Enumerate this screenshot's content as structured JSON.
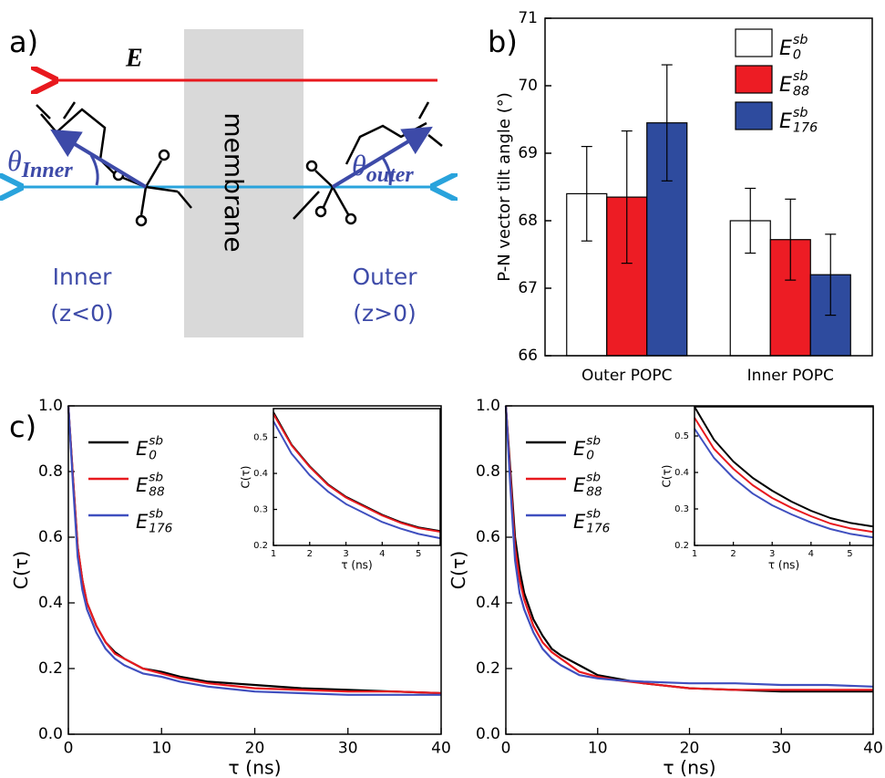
{
  "diagram": {
    "panel_label": "a)",
    "field_label": "E",
    "membrane_label": "membrane",
    "theta_inner": {
      "symbol": "θ",
      "subscript": "Inner"
    },
    "theta_outer": {
      "symbol": "θ",
      "subscript": "outer"
    },
    "inner_label": "Inner",
    "inner_condition": "(z<0)",
    "outer_label": "Outer",
    "outer_condition": "(z>0)"
  },
  "chart_data": [
    {
      "type": "bar",
      "panel_label": "b)",
      "y_label": "P-N vector tilt angle (°)",
      "categories": [
        "Outer POPC",
        "Inner POPC"
      ],
      "series": [
        {
          "name": "E",
          "name_sub": "0",
          "name_sup": "sb",
          "color": "#ffffff",
          "values": [
            68.4,
            68.0
          ],
          "errors": [
            0.7,
            0.48
          ]
        },
        {
          "name": "E",
          "name_sub": "88",
          "name_sup": "sb",
          "color": "#ed1c24",
          "values": [
            68.35,
            67.72
          ],
          "errors": [
            0.98,
            0.6
          ]
        },
        {
          "name": "E",
          "name_sub": "176",
          "name_sup": "sb",
          "color": "#2e4b9e",
          "values": [
            69.45,
            67.2
          ],
          "errors": [
            0.86,
            0.6
          ]
        }
      ],
      "ylim": [
        66,
        71
      ],
      "yticks": [
        66,
        67,
        68,
        69,
        70,
        71
      ],
      "legend": "upper right"
    },
    {
      "type": "line",
      "panel_label": "c)",
      "x_label": "τ (ns)",
      "y_label": "C(τ)",
      "x": [
        0,
        0.5,
        1,
        1.5,
        2,
        3,
        4,
        5,
        6,
        8,
        10,
        12,
        15,
        20,
        25,
        30,
        35,
        40
      ],
      "series": [
        {
          "name": "E",
          "name_sub": "0",
          "name_sup": "sb",
          "color": "#000000",
          "values": [
            1.0,
            0.78,
            0.57,
            0.47,
            0.4,
            0.33,
            0.28,
            0.25,
            0.23,
            0.2,
            0.19,
            0.175,
            0.16,
            0.15,
            0.14,
            0.135,
            0.13,
            0.125
          ]
        },
        {
          "name": "E",
          "name_sub": "88",
          "name_sup": "sb",
          "color": "#e8191e",
          "values": [
            1.0,
            0.78,
            0.57,
            0.47,
            0.4,
            0.33,
            0.28,
            0.245,
            0.23,
            0.2,
            0.185,
            0.17,
            0.155,
            0.14,
            0.135,
            0.13,
            0.13,
            0.125
          ]
        },
        {
          "name": "E",
          "name_sub": "176",
          "name_sup": "sb",
          "color": "#3f4fbf",
          "values": [
            1.0,
            0.76,
            0.54,
            0.44,
            0.38,
            0.31,
            0.26,
            0.23,
            0.21,
            0.185,
            0.175,
            0.16,
            0.145,
            0.13,
            0.125,
            0.12,
            0.12,
            0.12
          ]
        }
      ],
      "xlim": [
        0,
        40
      ],
      "xticks": [
        0,
        10,
        20,
        30,
        40
      ],
      "ylim": [
        0,
        1
      ],
      "yticks": [
        {
          "value": 0,
          "label": "0.0"
        },
        0.2,
        0.4,
        0.6,
        0.8,
        {
          "value": 1,
          "label": "1.0"
        }
      ],
      "legend": "upper left"
    },
    {
      "type": "line",
      "x_label": "τ (ns)",
      "y_label": "C(τ)",
      "x": [
        1,
        1.5,
        2,
        2.5,
        3,
        3.5,
        4,
        4.5,
        5,
        5.6
      ],
      "series": [
        {
          "color": "#000000",
          "values": [
            0.57,
            0.48,
            0.42,
            0.37,
            0.335,
            0.31,
            0.285,
            0.265,
            0.25,
            0.24
          ]
        },
        {
          "color": "#e8191e",
          "values": [
            0.565,
            0.478,
            0.418,
            0.368,
            0.333,
            0.308,
            0.283,
            0.263,
            0.248,
            0.238
          ]
        },
        {
          "color": "#3f4fbf",
          "values": [
            0.545,
            0.455,
            0.395,
            0.35,
            0.315,
            0.29,
            0.265,
            0.247,
            0.232,
            0.22
          ]
        }
      ],
      "xlim": [
        1,
        5.6
      ],
      "xticks": [
        1,
        2,
        3,
        4,
        5
      ],
      "ylim": [
        0.2,
        0.58
      ],
      "yticks": [
        0.2,
        0.3,
        0.4,
        0.5
      ]
    },
    {
      "type": "line",
      "x_label": "τ (ns)",
      "y_label": "C(τ)",
      "x": [
        0,
        0.5,
        1,
        1.5,
        2,
        3,
        4,
        5,
        6,
        8,
        10,
        12,
        15,
        20,
        25,
        30,
        35,
        40
      ],
      "series": [
        {
          "name": "E",
          "name_sub": "0",
          "name_sup": "sb",
          "color": "#000000",
          "values": [
            1.0,
            0.8,
            0.6,
            0.5,
            0.43,
            0.35,
            0.3,
            0.26,
            0.24,
            0.21,
            0.18,
            0.17,
            0.155,
            0.14,
            0.135,
            0.13,
            0.13,
            0.13
          ]
        },
        {
          "name": "E",
          "name_sub": "88",
          "name_sup": "sb",
          "color": "#e8191e",
          "values": [
            1.0,
            0.78,
            0.57,
            0.47,
            0.41,
            0.33,
            0.28,
            0.25,
            0.23,
            0.19,
            0.175,
            0.165,
            0.155,
            0.14,
            0.135,
            0.135,
            0.135,
            0.135
          ]
        },
        {
          "name": "E",
          "name_sub": "176",
          "name_sup": "sb",
          "color": "#3f4fbf",
          "values": [
            1.0,
            0.75,
            0.53,
            0.43,
            0.38,
            0.31,
            0.26,
            0.23,
            0.21,
            0.18,
            0.17,
            0.165,
            0.16,
            0.155,
            0.155,
            0.15,
            0.15,
            0.145
          ]
        }
      ],
      "xlim": [
        0,
        40
      ],
      "xticks": [
        0,
        10,
        20,
        30,
        40
      ],
      "ylim": [
        0,
        1
      ],
      "yticks": [
        {
          "value": 0,
          "label": "0.0"
        },
        0.2,
        0.4,
        0.6,
        0.8,
        {
          "value": 1,
          "label": "1.0"
        }
      ],
      "legend": "upper left"
    },
    {
      "type": "line",
      "x_label": "τ (ns)",
      "y_label": "C(τ)",
      "x": [
        1,
        1.5,
        2,
        2.5,
        3,
        3.5,
        4,
        4.5,
        5,
        5.6
      ],
      "series": [
        {
          "color": "#000000",
          "values": [
            0.58,
            0.49,
            0.43,
            0.385,
            0.35,
            0.32,
            0.295,
            0.275,
            0.262,
            0.252
          ]
        },
        {
          "color": "#e8191e",
          "values": [
            0.55,
            0.465,
            0.41,
            0.365,
            0.33,
            0.303,
            0.28,
            0.26,
            0.247,
            0.237
          ]
        },
        {
          "color": "#3f4fbf",
          "values": [
            0.52,
            0.44,
            0.385,
            0.342,
            0.31,
            0.285,
            0.263,
            0.245,
            0.232,
            0.222
          ]
        }
      ],
      "xlim": [
        1,
        5.6
      ],
      "xticks": [
        1,
        2,
        3,
        4,
        5
      ],
      "ylim": [
        0.2,
        0.58
      ],
      "yticks": [
        0.2,
        0.3,
        0.4,
        0.5
      ]
    }
  ]
}
